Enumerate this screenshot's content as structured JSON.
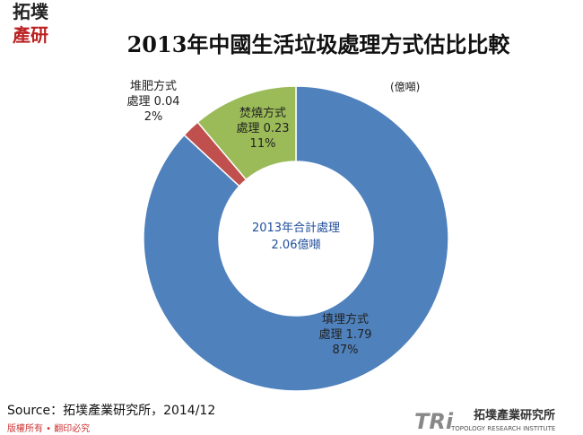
{
  "logo": {
    "line1": "拓墣",
    "line2": "產研"
  },
  "chart_data": {
    "type": "donut",
    "title": "2013年中國生活垃圾處理方式估比比較",
    "unit": "(億噸)",
    "center_label": [
      "2013年合計處理",
      "2.06億噸"
    ],
    "categories": [
      "填埋方式處理",
      "堆肥方式處理",
      "焚燒方式處理"
    ],
    "values": [
      1.79,
      0.04,
      0.23
    ],
    "percent_labels": [
      "87%",
      "2%",
      "11%"
    ],
    "colors": [
      "#4f81bd",
      "#c0504d",
      "#9bbb59"
    ]
  },
  "footer": {
    "source": "Source：拓墣產業研究所，2014/12",
    "copyright": "版權所有 • 翻印必究",
    "brand_mark": "TRi",
    "brand_name": "拓墣產業研究所",
    "brand_sub": "TOPOLOGY RESEARCH INSTITUTE"
  }
}
